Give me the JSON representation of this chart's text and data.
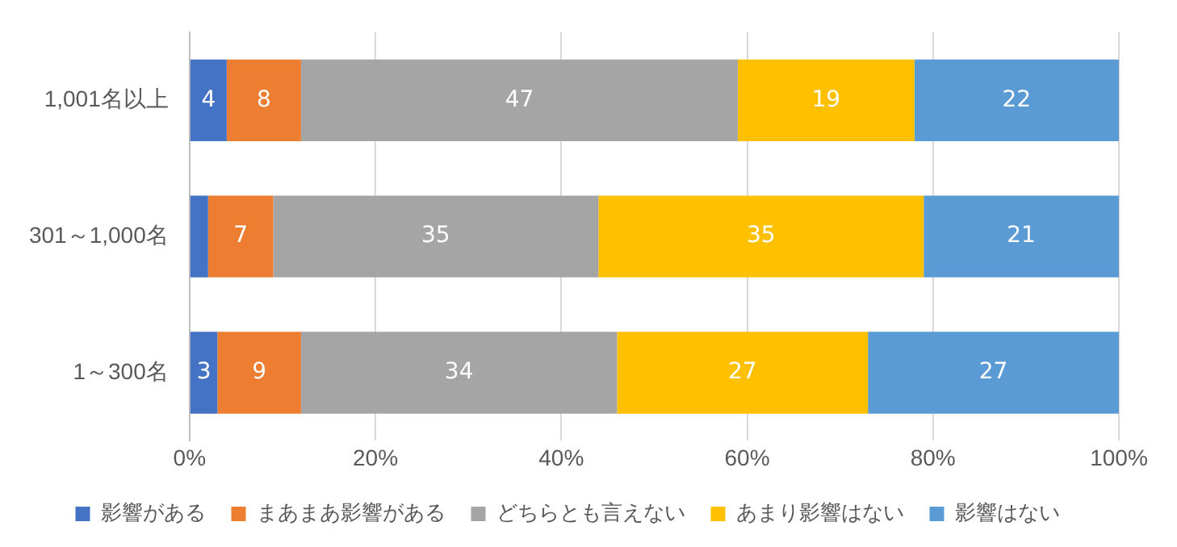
{
  "chart_data": {
    "type": "bar",
    "orientation": "horizontal",
    "stacked": true,
    "categories": [
      "1,001名以上",
      "301～1,000名",
      "1～300名"
    ],
    "series": [
      {
        "name": "影響がある",
        "color": "#4472c4",
        "values": [
          4,
          2,
          3
        ],
        "value_labels": [
          "4",
          null,
          "3"
        ]
      },
      {
        "name": "まあまあ影響がある",
        "color": "#ed7d31",
        "values": [
          8,
          7,
          9
        ],
        "value_labels": [
          "8",
          "7",
          "9"
        ]
      },
      {
        "name": "どちらとも言えない",
        "color": "#a5a5a5",
        "values": [
          47,
          35,
          34
        ],
        "value_labels": [
          "47",
          "35",
          "34"
        ]
      },
      {
        "name": "あまり影響はない",
        "color": "#ffc000",
        "values": [
          19,
          35,
          27
        ],
        "value_labels": [
          "19",
          "35",
          "27"
        ]
      },
      {
        "name": "影響はない",
        "color": "#5b9bd5",
        "values": [
          22,
          21,
          27
        ],
        "value_labels": [
          "22",
          "21",
          "27"
        ]
      }
    ],
    "xlim": [
      0,
      100
    ],
    "xticks": [
      {
        "value": 0,
        "label": "0%"
      },
      {
        "value": 20,
        "label": "20%"
      },
      {
        "value": 40,
        "label": "40%"
      },
      {
        "value": 60,
        "label": "60%"
      },
      {
        "value": 80,
        "label": "80%"
      },
      {
        "value": 100,
        "label": "100%"
      }
    ],
    "grid": "x",
    "legend": "bottom"
  }
}
